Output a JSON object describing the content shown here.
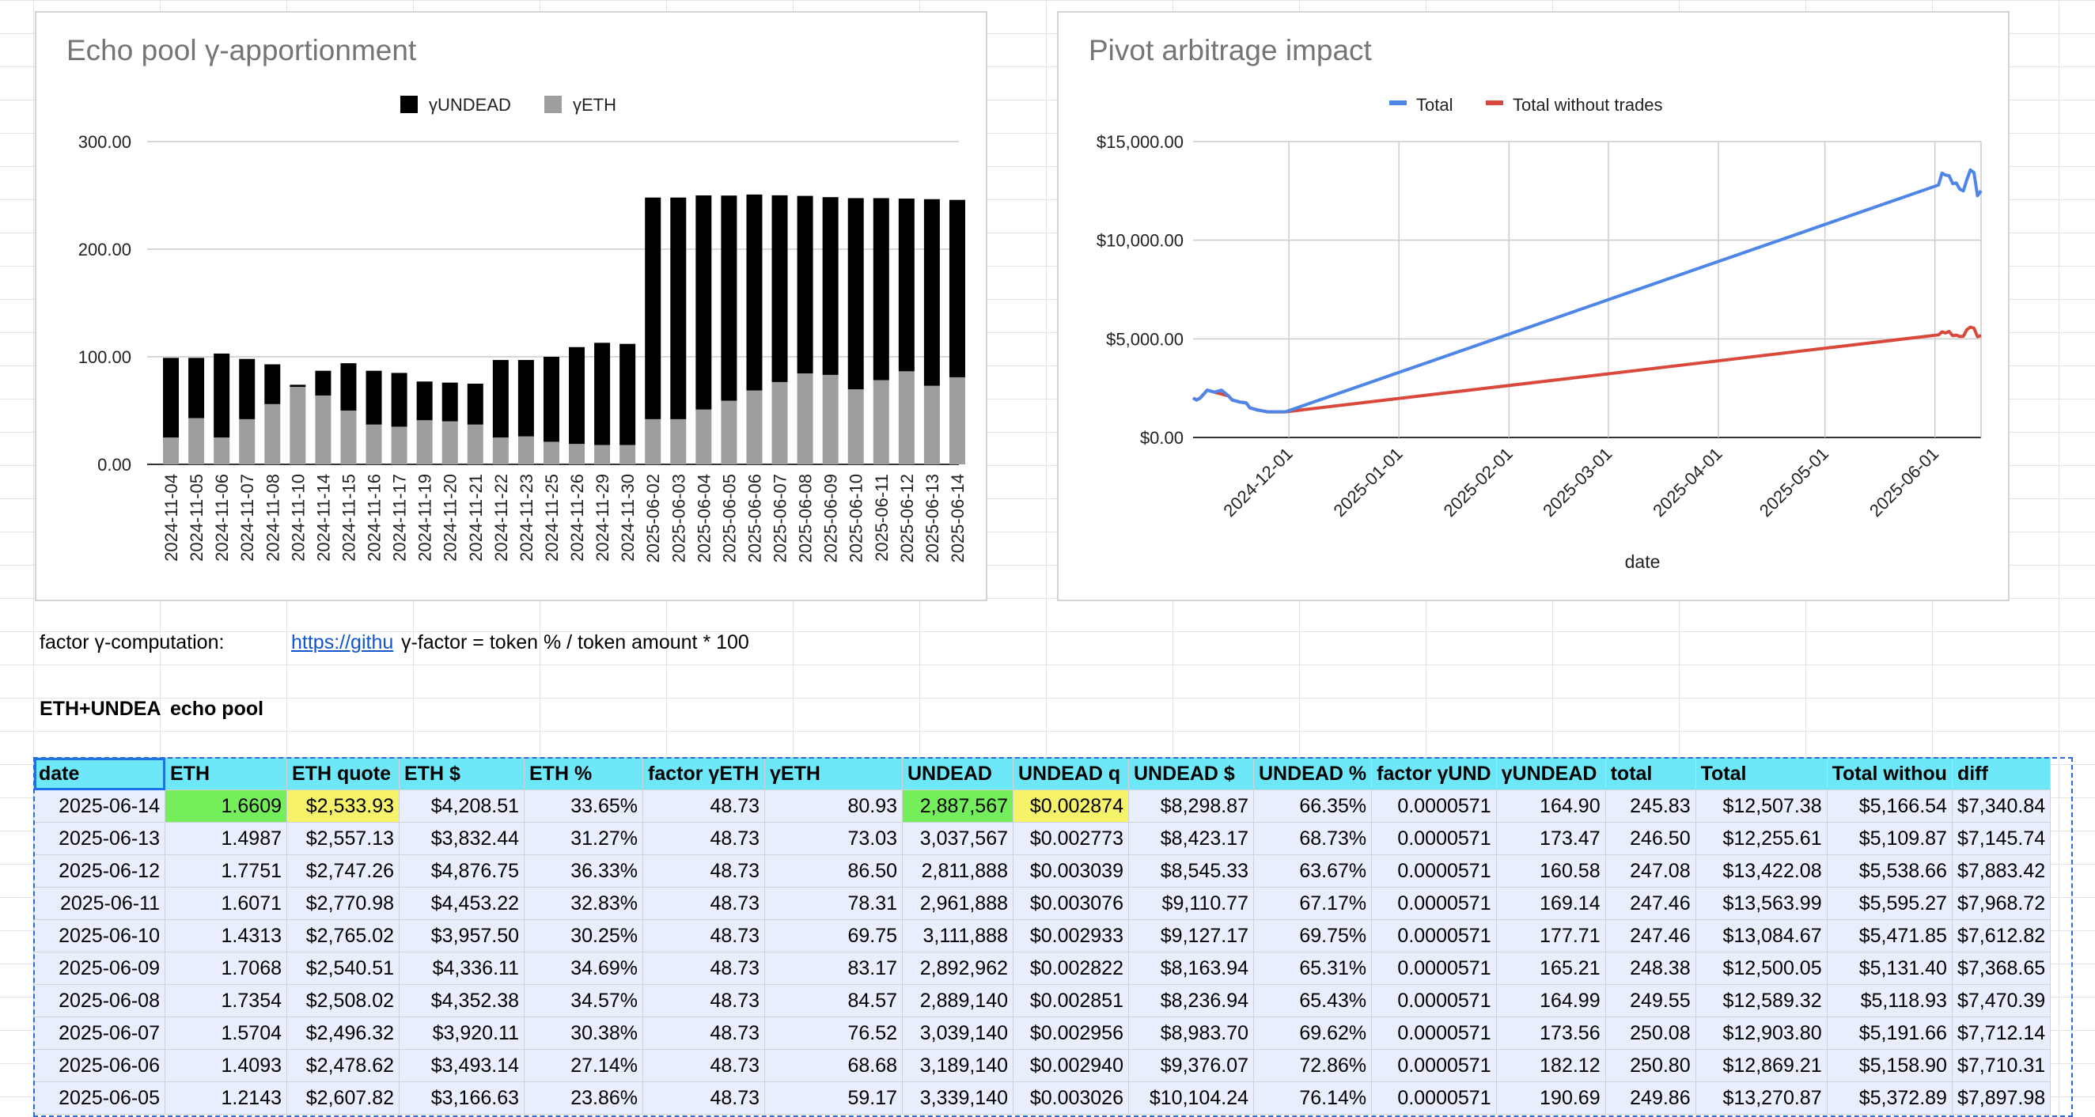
{
  "colors": {
    "bar_undead": "#000000",
    "bar_eth": "#9e9e9e",
    "line_total": "#4e86e8",
    "line_without": "#d9483b",
    "header_fill": "#6ee8f8",
    "row_fill": "#e8eefc",
    "highlight_green": "#74ee5a",
    "highlight_yellow": "#f6f36a"
  },
  "sheet_text": {
    "factor_label": "factor γ-computation:",
    "link_text": "https://githu",
    "formula": "γ-factor = token % / token amount * 100",
    "section_label": "ETH+UNDEA",
    "pool_label": "echo pool"
  },
  "table": {
    "headers": [
      "date",
      "ETH",
      "ETH quote",
      "ETH $",
      "ETH %",
      "factor γETH",
      "γETH",
      "UNDEAD",
      "UNDEAD q",
      "UNDEAD $",
      "UNDEAD %",
      "factor γUND",
      "γUNDEAD",
      "total",
      "Total",
      "Total withou",
      "diff"
    ],
    "rows": [
      [
        "2025-06-14",
        "1.6609",
        "$2,533.93",
        "$4,208.51",
        "33.65%",
        "48.73",
        "80.93",
        "2,887,567",
        "$0.002874",
        "$8,298.87",
        "66.35%",
        "0.0000571",
        "164.90",
        "245.83",
        "$12,507.38",
        "$5,166.54",
        "$7,340.84"
      ],
      [
        "2025-06-13",
        "1.4987",
        "$2,557.13",
        "$3,832.44",
        "31.27%",
        "48.73",
        "73.03",
        "3,037,567",
        "$0.002773",
        "$8,423.17",
        "68.73%",
        "0.0000571",
        "173.47",
        "246.50",
        "$12,255.61",
        "$5,109.87",
        "$7,145.74"
      ],
      [
        "2025-06-12",
        "1.7751",
        "$2,747.26",
        "$4,876.75",
        "36.33%",
        "48.73",
        "86.50",
        "2,811,888",
        "$0.003039",
        "$8,545.33",
        "63.67%",
        "0.0000571",
        "160.58",
        "247.08",
        "$13,422.08",
        "$5,538.66",
        "$7,883.42"
      ],
      [
        "2025-06-11",
        "1.6071",
        "$2,770.98",
        "$4,453.22",
        "32.83%",
        "48.73",
        "78.31",
        "2,961,888",
        "$0.003076",
        "$9,110.77",
        "67.17%",
        "0.0000571",
        "169.14",
        "247.46",
        "$13,563.99",
        "$5,595.27",
        "$7,968.72"
      ],
      [
        "2025-06-10",
        "1.4313",
        "$2,765.02",
        "$3,957.50",
        "30.25%",
        "48.73",
        "69.75",
        "3,111,888",
        "$0.002933",
        "$9,127.17",
        "69.75%",
        "0.0000571",
        "177.71",
        "247.46",
        "$13,084.67",
        "$5,471.85",
        "$7,612.82"
      ],
      [
        "2025-06-09",
        "1.7068",
        "$2,540.51",
        "$4,336.11",
        "34.69%",
        "48.73",
        "83.17",
        "2,892,962",
        "$0.002822",
        "$8,163.94",
        "65.31%",
        "0.0000571",
        "165.21",
        "248.38",
        "$12,500.05",
        "$5,131.40",
        "$7,368.65"
      ],
      [
        "2025-06-08",
        "1.7354",
        "$2,508.02",
        "$4,352.38",
        "34.57%",
        "48.73",
        "84.57",
        "2,889,140",
        "$0.002851",
        "$8,236.94",
        "65.43%",
        "0.0000571",
        "164.99",
        "249.55",
        "$12,589.32",
        "$5,118.93",
        "$7,470.39"
      ],
      [
        "2025-06-07",
        "1.5704",
        "$2,496.32",
        "$3,920.11",
        "30.38%",
        "48.73",
        "76.52",
        "3,039,140",
        "$0.002956",
        "$8,983.70",
        "69.62%",
        "0.0000571",
        "173.56",
        "250.08",
        "$12,903.80",
        "$5,191.66",
        "$7,712.14"
      ],
      [
        "2025-06-06",
        "1.4093",
        "$2,478.62",
        "$3,493.14",
        "27.14%",
        "48.73",
        "68.68",
        "3,189,140",
        "$0.002940",
        "$9,376.07",
        "72.86%",
        "0.0000571",
        "182.12",
        "250.80",
        "$12,869.21",
        "$5,158.90",
        "$7,710.31"
      ],
      [
        "2025-06-05",
        "1.2143",
        "$2,607.82",
        "$3,166.63",
        "23.86%",
        "48.73",
        "59.17",
        "3,339,140",
        "$0.003026",
        "$10,104.24",
        "76.14%",
        "0.0000571",
        "190.69",
        "249.86",
        "$13,270.87",
        "$5,372.89",
        "$7,897.98"
      ]
    ]
  },
  "chart_data": [
    {
      "type": "bar",
      "stacked": true,
      "title": "Echo pool γ-apportionment",
      "legend_position": "top",
      "categories": [
        "2024-11-04",
        "2024-11-05",
        "2024-11-06",
        "2024-11-07",
        "2024-11-08",
        "2024-11-10",
        "2024-11-14",
        "2024-11-15",
        "2024-11-16",
        "2024-11-17",
        "2024-11-19",
        "2024-11-20",
        "2024-11-21",
        "2024-11-22",
        "2024-11-23",
        "2024-11-25",
        "2024-11-26",
        "2024-11-29",
        "2024-11-30",
        "2025-06-02",
        "2025-06-03",
        "2025-06-04",
        "2025-06-05",
        "2025-06-06",
        "2025-06-07",
        "2025-06-08",
        "2025-06-09",
        "2025-06-10",
        "2025-06-11",
        "2025-06-12",
        "2025-06-13",
        "2025-06-14"
      ],
      "series": [
        {
          "name": "γUNDEAD",
          "values": [
            74,
            56,
            78,
            56,
            37,
            2,
            23,
            44,
            50,
            50,
            36,
            36,
            38,
            72,
            71,
            79,
            90,
            95,
            94,
            206,
            206,
            199,
            190.69,
            182.12,
            173.56,
            164.99,
            165.21,
            177.71,
            169.14,
            160.58,
            173.47,
            164.9
          ]
        },
        {
          "name": "γETH",
          "values": [
            25,
            43,
            25,
            42,
            56,
            72,
            64,
            50,
            37,
            35,
            41,
            40,
            37,
            25,
            26,
            21,
            19,
            18,
            18,
            42,
            42,
            51,
            59.17,
            68.68,
            76.52,
            84.57,
            83.17,
            69.75,
            78.31,
            86.5,
            73.03,
            80.93
          ]
        }
      ],
      "ylim": [
        0,
        300
      ],
      "yticks": [
        "0.00",
        "100.00",
        "200.00",
        "300.00"
      ],
      "grid": true
    },
    {
      "type": "line",
      "title": "Pivot arbitrage impact",
      "xlabel": "date",
      "legend_position": "top",
      "xlim": [
        "2024-11-04",
        "2025-06-14"
      ],
      "ylim": [
        0,
        15000
      ],
      "yticks": [
        "$0.00",
        "$5,000.00",
        "$10,000.00",
        "$15,000.00"
      ],
      "xticks": [
        "2024-12-01",
        "2025-01-01",
        "2025-02-01",
        "2025-03-01",
        "2025-04-01",
        "2025-05-01",
        "2025-06-01"
      ],
      "grid": true,
      "series": [
        {
          "name": "Total",
          "points": [
            [
              "2024-11-04",
              2000
            ],
            [
              "2024-11-05",
              1900
            ],
            [
              "2024-11-06",
              2000
            ],
            [
              "2024-11-07",
              2200
            ],
            [
              "2024-11-08",
              2400
            ],
            [
              "2024-11-10",
              2300
            ],
            [
              "2024-11-12",
              2400
            ],
            [
              "2024-11-14",
              2100
            ],
            [
              "2024-11-15",
              1900
            ],
            [
              "2024-11-17",
              1800
            ],
            [
              "2024-11-19",
              1750
            ],
            [
              "2024-11-20",
              1500
            ],
            [
              "2024-11-22",
              1400
            ],
            [
              "2024-11-25",
              1300
            ],
            [
              "2024-11-30",
              1300
            ],
            [
              "2025-06-02",
              12800
            ],
            [
              "2025-06-03",
              13400
            ],
            [
              "2025-06-04",
              13300
            ],
            [
              "2025-06-05",
              13270.87
            ],
            [
              "2025-06-06",
              12869.21
            ],
            [
              "2025-06-07",
              12903.8
            ],
            [
              "2025-06-08",
              12589.32
            ],
            [
              "2025-06-09",
              12500.05
            ],
            [
              "2025-06-10",
              13084.67
            ],
            [
              "2025-06-11",
              13563.99
            ],
            [
              "2025-06-12",
              13422.08
            ],
            [
              "2025-06-13",
              12255.61
            ],
            [
              "2025-06-14",
              12507.38
            ]
          ]
        },
        {
          "name": "Total without trades",
          "points": [
            [
              "2024-11-04",
              2000
            ],
            [
              "2024-11-05",
              1900
            ],
            [
              "2024-11-06",
              2000
            ],
            [
              "2024-11-07",
              2200
            ],
            [
              "2024-11-08",
              2400
            ],
            [
              "2024-11-10",
              2300
            ],
            [
              "2024-11-12",
              2200
            ],
            [
              "2024-11-14",
              2100
            ],
            [
              "2024-11-15",
              1900
            ],
            [
              "2024-11-17",
              1800
            ],
            [
              "2024-11-19",
              1750
            ],
            [
              "2024-11-20",
              1500
            ],
            [
              "2024-11-22",
              1400
            ],
            [
              "2024-11-25",
              1300
            ],
            [
              "2024-11-30",
              1300
            ],
            [
              "2025-06-02",
              5200
            ],
            [
              "2025-06-03",
              5350
            ],
            [
              "2025-06-04",
              5300
            ],
            [
              "2025-06-05",
              5372.89
            ],
            [
              "2025-06-06",
              5158.9
            ],
            [
              "2025-06-07",
              5191.66
            ],
            [
              "2025-06-08",
              5118.93
            ],
            [
              "2025-06-09",
              5131.4
            ],
            [
              "2025-06-10",
              5471.85
            ],
            [
              "2025-06-11",
              5595.27
            ],
            [
              "2025-06-12",
              5538.66
            ],
            [
              "2025-06-13",
              5109.87
            ],
            [
              "2025-06-14",
              5166.54
            ]
          ]
        }
      ]
    }
  ]
}
